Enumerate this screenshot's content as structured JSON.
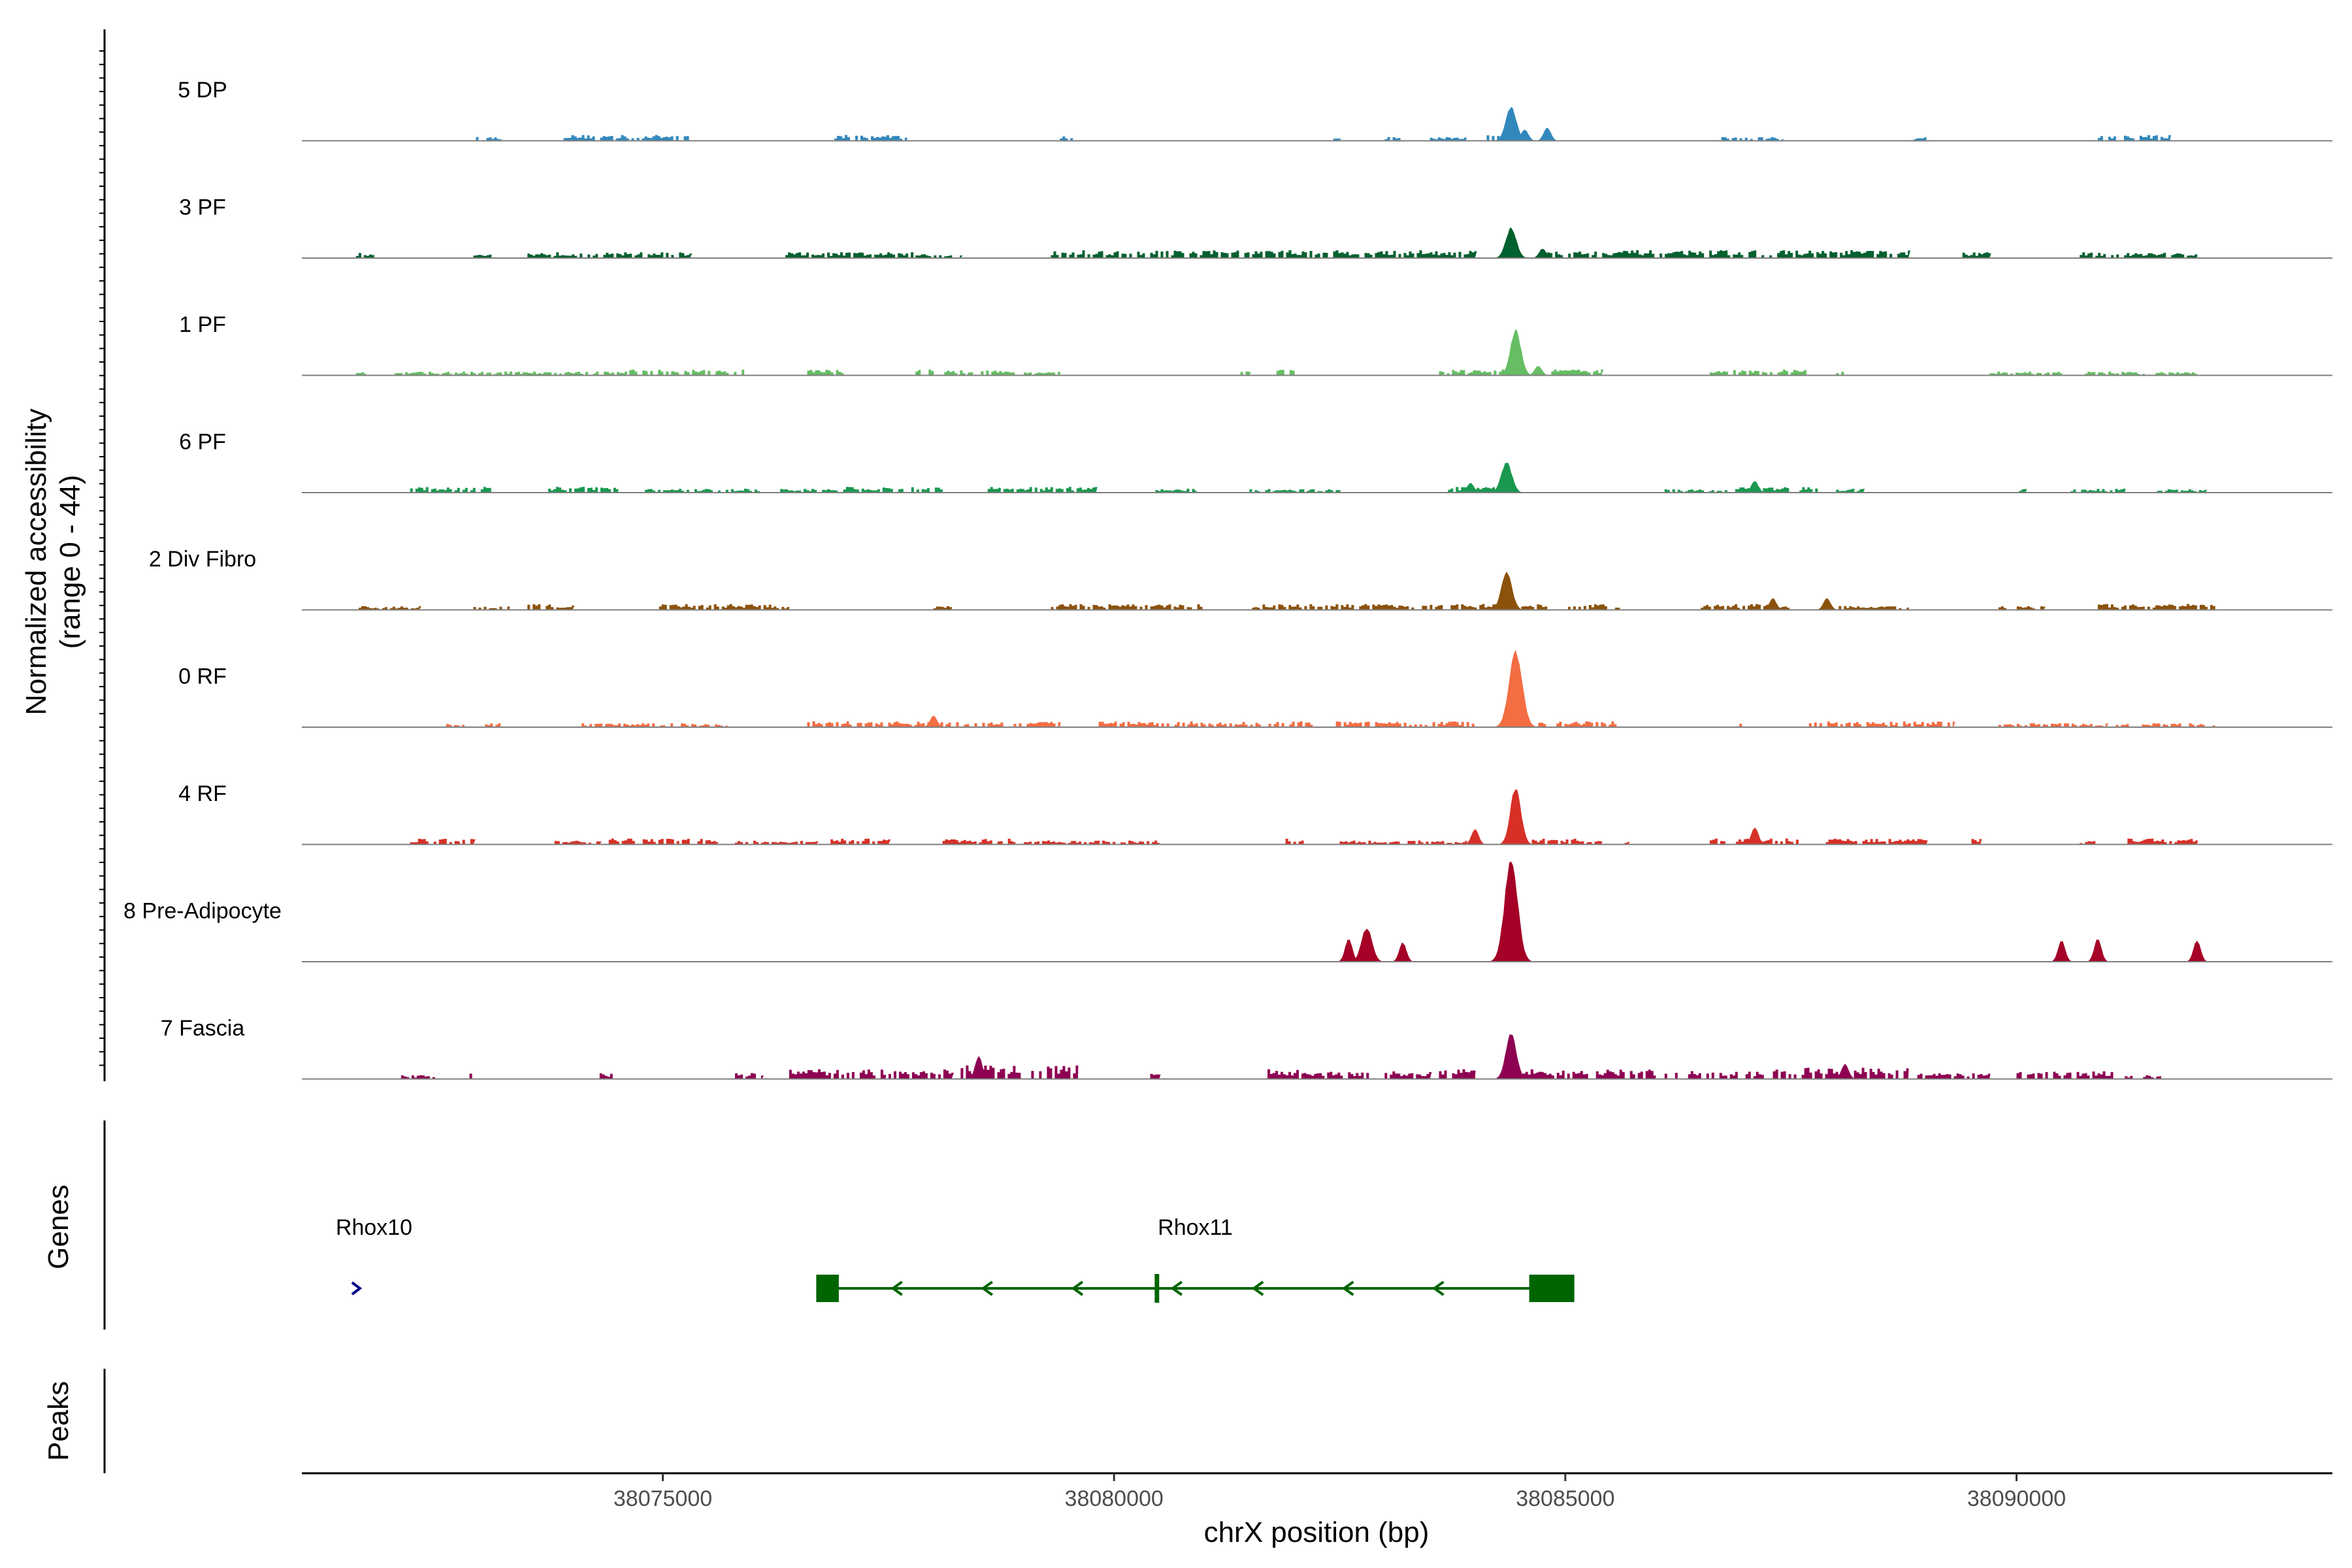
{
  "chart_data": {
    "type": "area",
    "title": "",
    "ylabel": [
      "Normalized accessibility",
      "(range 0 - 44)"
    ],
    "xlabel": "chrX position (bp)",
    "xlim": [
      38071000,
      38093500
    ],
    "ylim": [
      0,
      44
    ],
    "x_ticks": [
      38075000,
      38080000,
      38085000,
      38090000
    ],
    "x_tick_labels": [
      "38075000",
      "38080000",
      "38085000",
      "38090000"
    ],
    "series": [
      {
        "name": "5 DP",
        "color": "#3288BD",
        "background": [
          [
            38072900,
            38073200,
            2
          ],
          [
            38073900,
            38075300,
            3
          ],
          [
            38076900,
            38077700,
            3
          ],
          [
            38079400,
            38079550,
            3
          ],
          [
            38082400,
            38082500,
            2
          ],
          [
            38083000,
            38083200,
            2
          ],
          [
            38083500,
            38083900,
            2
          ],
          [
            38084100,
            38084300,
            3
          ],
          [
            38086700,
            38087400,
            2
          ],
          [
            38088800,
            38089000,
            2
          ],
          [
            38090900,
            38091700,
            3
          ]
        ],
        "peaks": [
          [
            38084400,
            18
          ],
          [
            38084550,
            6
          ],
          [
            38084800,
            7
          ]
        ]
      },
      {
        "name": "3 PF",
        "color": "#00602E",
        "background": [
          [
            38071600,
            38071800,
            3
          ],
          [
            38072900,
            38073100,
            2
          ],
          [
            38073500,
            38075300,
            3
          ],
          [
            38076300,
            38077800,
            3
          ],
          [
            38077800,
            38078300,
            2
          ],
          [
            38079300,
            38084000,
            4
          ],
          [
            38084800,
            38088800,
            4
          ],
          [
            38089400,
            38089700,
            3
          ],
          [
            38090700,
            38092000,
            3
          ]
        ],
        "peaks": [
          [
            38084400,
            16
          ],
          [
            38084750,
            5
          ]
        ]
      },
      {
        "name": "1 PF",
        "color": "#66BD63",
        "background": [
          [
            38071600,
            38071700,
            2
          ],
          [
            38072000,
            38074600,
            2
          ],
          [
            38074600,
            38075900,
            3
          ],
          [
            38076600,
            38077000,
            3
          ],
          [
            38077800,
            38078900,
            3
          ],
          [
            38079000,
            38079400,
            2
          ],
          [
            38081400,
            38081500,
            2
          ],
          [
            38081800,
            38082000,
            3
          ],
          [
            38083600,
            38084400,
            3
          ],
          [
            38084700,
            38085400,
            3
          ],
          [
            38086600,
            38087700,
            3
          ],
          [
            38088000,
            38088100,
            2
          ],
          [
            38089700,
            38090500,
            2
          ],
          [
            38090700,
            38092000,
            2
          ]
        ],
        "peaks": [
          [
            38084450,
            24
          ],
          [
            38084700,
            5
          ]
        ]
      },
      {
        "name": "6 PF",
        "color": "#1A9850",
        "background": [
          [
            38072200,
            38073100,
            3
          ],
          [
            38073700,
            38074500,
            3
          ],
          [
            38074800,
            38076100,
            2
          ],
          [
            38076300,
            38077000,
            2
          ],
          [
            38077000,
            38078100,
            3
          ],
          [
            38078600,
            38079800,
            3
          ],
          [
            38080400,
            38080900,
            2
          ],
          [
            38081500,
            38082500,
            2
          ],
          [
            38083700,
            38084300,
            3
          ],
          [
            38086100,
            38086900,
            2
          ],
          [
            38086900,
            38087800,
            3
          ],
          [
            38088000,
            38088300,
            2
          ],
          [
            38090000,
            38090100,
            2
          ],
          [
            38090600,
            38091200,
            2
          ],
          [
            38091500,
            38092100,
            2
          ]
        ],
        "peaks": [
          [
            38084350,
            16
          ],
          [
            38083950,
            5
          ],
          [
            38087100,
            6
          ]
        ]
      },
      {
        "name": "2 Div Fibro",
        "color": "#8C510A",
        "background": [
          [
            38071600,
            38072300,
            2
          ],
          [
            38072900,
            38073300,
            2
          ],
          [
            38073500,
            38074000,
            3
          ],
          [
            38074900,
            38076200,
            3
          ],
          [
            38076200,
            38076400,
            2
          ],
          [
            38078000,
            38078200,
            2
          ],
          [
            38079300,
            38081000,
            3
          ],
          [
            38081500,
            38083700,
            3
          ],
          [
            38083700,
            38084800,
            3
          ],
          [
            38085000,
            38085600,
            3
          ],
          [
            38086500,
            38087500,
            3
          ],
          [
            38088000,
            38088800,
            2
          ],
          [
            38089800,
            38090300,
            2
          ],
          [
            38090900,
            38092200,
            3
          ]
        ],
        "peaks": [
          [
            38084350,
            20
          ],
          [
            38087300,
            6
          ],
          [
            38087900,
            6
          ]
        ]
      },
      {
        "name": "0 RF",
        "color": "#F46D43",
        "background": [
          [
            38072600,
            38072800,
            2
          ],
          [
            38073000,
            38073200,
            2
          ],
          [
            38074100,
            38075800,
            2
          ],
          [
            38076600,
            38077700,
            3
          ],
          [
            38077700,
            38079400,
            3
          ],
          [
            38079800,
            38082200,
            3
          ],
          [
            38082400,
            38084000,
            3
          ],
          [
            38084700,
            38085600,
            3
          ],
          [
            38086900,
            38087000,
            2
          ],
          [
            38087700,
            38089300,
            3
          ],
          [
            38089800,
            38091000,
            2
          ],
          [
            38091100,
            38092200,
            2
          ]
        ],
        "peaks": [
          [
            38084450,
            40
          ],
          [
            38078000,
            6
          ]
        ]
      },
      {
        "name": "4 RF",
        "color": "#D73027",
        "background": [
          [
            38072200,
            38072900,
            3
          ],
          [
            38073800,
            38074300,
            2
          ],
          [
            38074400,
            38075600,
            3
          ],
          [
            38075800,
            38076700,
            2
          ],
          [
            38076800,
            38077500,
            3
          ],
          [
            38078100,
            38078900,
            3
          ],
          [
            38079000,
            38080500,
            2
          ],
          [
            38081900,
            38082100,
            3
          ],
          [
            38082500,
            38083900,
            2
          ],
          [
            38084600,
            38085400,
            3
          ],
          [
            38085600,
            38085700,
            2
          ],
          [
            38086600,
            38087600,
            3
          ],
          [
            38087800,
            38089000,
            3
          ],
          [
            38089500,
            38089600,
            3
          ],
          [
            38090700,
            38090900,
            2
          ],
          [
            38091200,
            38092000,
            3
          ]
        ],
        "peaks": [
          [
            38084450,
            30
          ],
          [
            38084000,
            8
          ],
          [
            38087100,
            9
          ]
        ]
      },
      {
        "name": "8 Pre-Adipocyte",
        "color": "#A50026",
        "background": [],
        "peaks": [
          [
            38084400,
            54
          ],
          [
            38082600,
            12
          ],
          [
            38082800,
            18
          ],
          [
            38083200,
            10
          ],
          [
            38090500,
            11
          ],
          [
            38090900,
            12
          ],
          [
            38092000,
            11
          ]
        ]
      },
      {
        "name": "7 Fascia",
        "color": "#8E0152",
        "background": [
          [
            38072100,
            38072500,
            2
          ],
          [
            38072800,
            38072900,
            3
          ],
          [
            38074300,
            38074500,
            3
          ],
          [
            38075800,
            38076100,
            3
          ],
          [
            38076400,
            38078200,
            5
          ],
          [
            38078300,
            38079600,
            7
          ],
          [
            38080400,
            38080500,
            3
          ],
          [
            38081700,
            38082100,
            5
          ],
          [
            38082100,
            38083500,
            4
          ],
          [
            38083600,
            38084000,
            5
          ],
          [
            38084500,
            38086000,
            5
          ],
          [
            38086100,
            38087200,
            4
          ],
          [
            38087300,
            38088800,
            6
          ],
          [
            38088900,
            38089700,
            3
          ],
          [
            38090000,
            38091100,
            4
          ],
          [
            38091200,
            38091600,
            2
          ]
        ],
        "peaks": [
          [
            38084400,
            24
          ],
          [
            38078500,
            12
          ],
          [
            38088100,
            8
          ]
        ]
      }
    ],
    "genes": [
      {
        "name": "Rhox10",
        "start": 38071600,
        "end": 38071750,
        "strand": "+",
        "color": "#00008B",
        "exons": [],
        "label_x": 38071800
      },
      {
        "name": "Rhox11",
        "start": 38076700,
        "end": 38085100,
        "strand": "-",
        "color": "#006400",
        "exons": [
          [
            38076700,
            38076950
          ],
          [
            38080450,
            38080500
          ],
          [
            38084600,
            38085100
          ]
        ],
        "arrows": [
          38077600,
          38078600,
          38079600,
          38080700,
          38081600,
          38082600,
          38083600
        ],
        "label_x": 38080900
      }
    ],
    "panel_labels": {
      "genes": "Genes",
      "peaks": "Peaks"
    }
  }
}
